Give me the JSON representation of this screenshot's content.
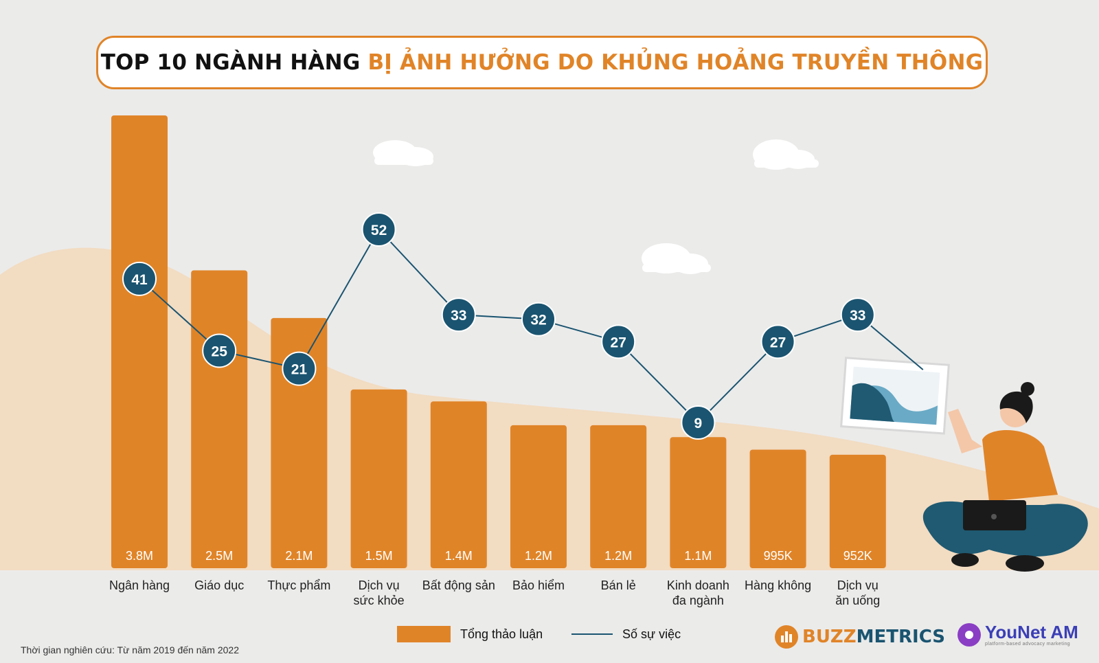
{
  "title": {
    "part1": "TOP 10 NGÀNH HÀNG",
    "part2": "BỊ ẢNH HƯỞNG DO KHỦNG HOẢNG TRUYỀN THÔNG"
  },
  "colors": {
    "bar": "#e08428",
    "line": "#1a5470",
    "marker": "#1a5470",
    "title_accent": "#e08428"
  },
  "chart_data": {
    "type": "bar",
    "title": "TOP 10 NGÀNH HÀNG BỊ ẢNH HƯỞNG DO KHỦNG HOẢNG TRUYỀN THÔNG",
    "categories": [
      [
        "Ngân hàng"
      ],
      [
        "Giáo dục"
      ],
      [
        "Thực phẩm"
      ],
      [
        "Dịch vụ",
        "sức khỏe"
      ],
      [
        "Bất động sản"
      ],
      [
        "Bảo hiểm"
      ],
      [
        "Bán lẻ"
      ],
      [
        "Kinh doanh",
        "đa ngành"
      ],
      [
        "Hàng không"
      ],
      [
        "Dịch vụ",
        "ăn uống"
      ]
    ],
    "series": [
      {
        "name": "Tổng thảo luận",
        "type": "bar",
        "values": [
          3800000,
          2500000,
          2100000,
          1500000,
          1400000,
          1200000,
          1200000,
          1100000,
          995000,
          952000
        ],
        "labels": [
          "3.8M",
          "2.5M",
          "2.1M",
          "1.5M",
          "1.4M",
          "1.2M",
          "1.2M",
          "1.1M",
          "995K",
          "952K"
        ]
      },
      {
        "name": "Số sự việc",
        "type": "line",
        "values": [
          41,
          25,
          21,
          52,
          33,
          32,
          27,
          9,
          27,
          33
        ],
        "labels": [
          "41",
          "25",
          "21",
          "52",
          "33",
          "32",
          "27",
          "9",
          "27",
          "33"
        ]
      }
    ],
    "legend_position": "bottom",
    "grid": false
  },
  "legend": {
    "bar_label": "Tổng thảo luận",
    "line_label": "Số sự việc"
  },
  "footnote": "Thời gian nghiên cứu: Từ năm 2019 đến năm 2022",
  "brands": {
    "buzz_part1": "BUZZ",
    "buzz_part2": "METRICS",
    "younet_name": "YouNet AM",
    "younet_tagline": "platform-based advocacy marketing"
  }
}
